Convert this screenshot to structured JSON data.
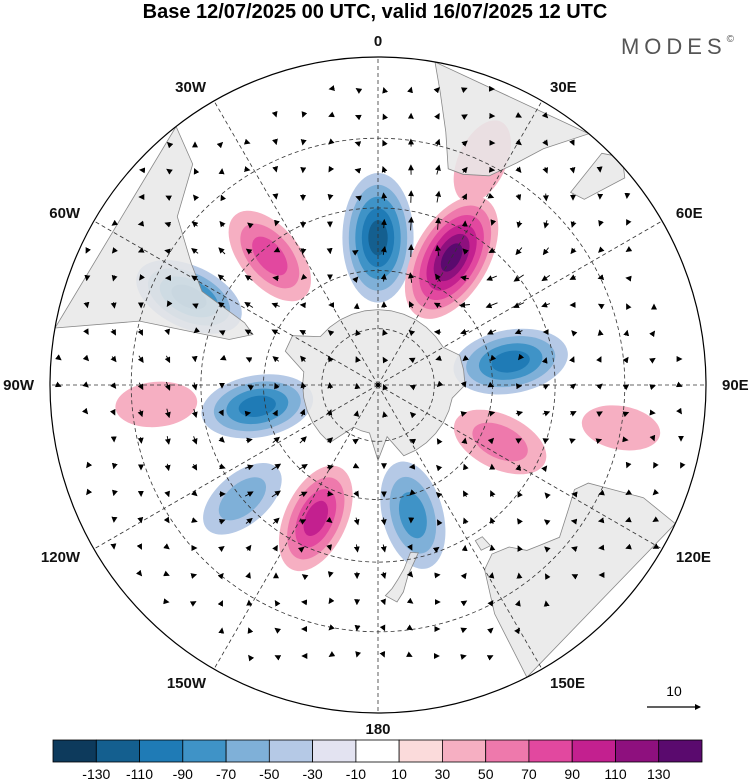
{
  "header": {
    "title": "Base 12/07/2025 00 UTC, valid 16/07/2025 12 UTC",
    "logo_text": "MODES",
    "logo_mark": "©"
  },
  "map": {
    "projection": "south-polar-stereographic",
    "land_color": "#e8e8e8",
    "coast_color": "#888888",
    "longitude_labels": [
      {
        "id": "lon-0",
        "text": "0"
      },
      {
        "id": "lon-30e",
        "text": "30E"
      },
      {
        "id": "lon-60e",
        "text": "60E"
      },
      {
        "id": "lon-90e",
        "text": "90E"
      },
      {
        "id": "lon-120e",
        "text": "120E"
      },
      {
        "id": "lon-150e",
        "text": "150E"
      },
      {
        "id": "lon-180",
        "text": "180"
      },
      {
        "id": "lon-150w",
        "text": "150W"
      },
      {
        "id": "lon-120w",
        "text": "120W"
      },
      {
        "id": "lon-90w",
        "text": "90W"
      },
      {
        "id": "lon-60w",
        "text": "60W"
      },
      {
        "id": "lon-30w",
        "text": "30W"
      }
    ],
    "anomaly_centers": [
      {
        "name": "negative-center-0",
        "lon": 0,
        "lat": -52,
        "value": -110
      },
      {
        "name": "positive-center-30e",
        "lon": 30,
        "lat": -52,
        "value": 120
      },
      {
        "name": "negative-center-80e",
        "lon": 80,
        "lat": -55,
        "value": -85
      },
      {
        "name": "positive-center-115e",
        "lon": 115,
        "lat": -55,
        "value": 55
      },
      {
        "name": "negative-center-165e",
        "lon": 165,
        "lat": -55,
        "value": -75
      },
      {
        "name": "positive-center-155w",
        "lon": -155,
        "lat": -52,
        "value": 80
      },
      {
        "name": "negative-center-130w",
        "lon": -130,
        "lat": -45,
        "value": -45
      },
      {
        "name": "negative-center-100w",
        "lon": -100,
        "lat": -58,
        "value": -80
      },
      {
        "name": "positive-center-40w",
        "lon": -40,
        "lat": -47,
        "value": 70
      },
      {
        "name": "negative-center-65w",
        "lon": -65,
        "lat": -38,
        "value": -80
      },
      {
        "name": "positive-center-95w",
        "lon": -95,
        "lat": -35,
        "value": 25
      },
      {
        "name": "positive-center-120e-north",
        "lon": 100,
        "lat": -30,
        "value": 20
      },
      {
        "name": "positive-center-30e-north",
        "lon": 25,
        "lat": -30,
        "value": 35
      }
    ]
  },
  "vector_key": {
    "label": "10"
  },
  "colorbar": {
    "colors": [
      "#0d3a5c",
      "#145f8f",
      "#1f7bb6",
      "#3f93c7",
      "#7fb0d8",
      "#b5c9e6",
      "#e3e3f1",
      "#ffffff",
      "#fbdbdb",
      "#f6afc2",
      "#ee79ac",
      "#e2489f",
      "#c3208f",
      "#8e107e",
      "#5a0a6e"
    ],
    "ticks": [
      "-130",
      "-110",
      "-90",
      "-70",
      "-50",
      "-30",
      "-10",
      "10",
      "30",
      "50",
      "70",
      "90",
      "110",
      "130"
    ]
  }
}
